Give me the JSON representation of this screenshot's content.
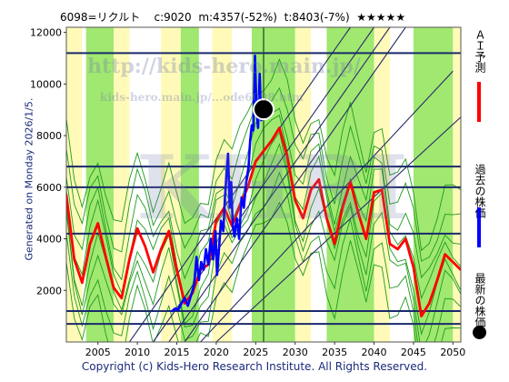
{
  "header": {
    "code_name": "6098=リクルト",
    "close": "c:9020",
    "min_info": "m:4357(-52%)",
    "target_info": "t:8403(-7%)",
    "stars": "★★★★★"
  },
  "generated_label": "Generated on Monday 2026/1/5.",
  "copyright": "Copyright (c) Kids-Hero Research Institute. All Rights Reserved.",
  "watermarks": {
    "url_main": "http://kids-hero.main.jp/",
    "url_sub": "kids-hero.main.jp/...ode6098.htm",
    "logo": "KHRI"
  },
  "legend": {
    "ai_forecast": "ＡＩ予測",
    "past_price": "過去の株価",
    "latest_price": "最新の株価"
  },
  "colors": {
    "forecast": "#ff0000",
    "past": "#0000ff",
    "latest": "#000000",
    "band_green": "#80e040",
    "band_yellow": "#fff8a0",
    "grid": "#1a2a6a",
    "trend_lines": "#2a2a6a",
    "envelope": "#1f9a1f"
  },
  "chart_data": {
    "type": "line",
    "xlim": [
      2001,
      2051
    ],
    "ylim": [
      0,
      12200
    ],
    "x_ticks": [
      2005,
      2010,
      2015,
      2020,
      2025,
      2030,
      2035,
      2040,
      2045,
      2050
    ],
    "y_ticks": [
      2000,
      4000,
      6000,
      8000,
      10000,
      12000
    ],
    "horizontal_levels": [
      700,
      1200,
      4200,
      6000,
      6800,
      11200
    ],
    "vertical_marker_x": 2026.0,
    "latest_point": {
      "x": 2026.0,
      "y": 9020
    },
    "series": [
      {
        "key": "ai_forecast",
        "x": [
          2001,
          2002,
          2003,
          2004,
          2005,
          2006,
          2007,
          2008,
          2009,
          2010,
          2011,
          2012,
          2013,
          2014,
          2015,
          2016,
          2017,
          2018,
          2019,
          2020,
          2021,
          2022,
          2023,
          2024,
          2025,
          2026,
          2027,
          2028,
          2029,
          2030,
          2031,
          2032,
          2033,
          2034,
          2035,
          2036,
          2037,
          2038,
          2039,
          2040,
          2041,
          2042,
          2043,
          2044,
          2045,
          2046,
          2047,
          2048,
          2049,
          2050,
          2051
        ],
        "values": [
          5700,
          3200,
          2300,
          3800,
          4600,
          3300,
          2100,
          1700,
          3200,
          4400,
          3700,
          2700,
          3600,
          4300,
          2800,
          1500,
          1900,
          2800,
          3000,
          4700,
          5200,
          4500,
          5300,
          6000,
          7000,
          7400,
          7800,
          8300,
          7200,
          5500,
          4800,
          5900,
          6300,
          4800,
          3800,
          5200,
          6200,
          5000,
          4000,
          5800,
          5900,
          3800,
          3600,
          4000,
          2900,
          1000,
          1500,
          2400,
          3400,
          3100,
          2800
        ]
      },
      {
        "key": "past_price",
        "x": [
          2014.4,
          2014.8,
          2015.2,
          2015.6,
          2016.0,
          2016.4,
          2016.8,
          2017.2,
          2017.5,
          2017.8,
          2018.1,
          2018.4,
          2018.7,
          2019.0,
          2019.3,
          2019.6,
          2019.9,
          2020.1,
          2020.3,
          2020.6,
          2020.9,
          2021.1,
          2021.3,
          2021.5,
          2021.7,
          2021.9,
          2022.1,
          2022.3,
          2022.6,
          2022.9,
          2023.2,
          2023.5,
          2023.8,
          2024.1,
          2024.3,
          2024.5,
          2024.7,
          2024.9,
          2025.1,
          2025.3,
          2025.5,
          2025.7,
          2025.9,
          2026.0
        ],
        "values": [
          1200,
          1300,
          1250,
          1500,
          1700,
          1400,
          1800,
          2200,
          3300,
          2400,
          3100,
          2800,
          3600,
          3000,
          4000,
          3200,
          4300,
          2600,
          3400,
          4700,
          4300,
          5600,
          6500,
          7300,
          5200,
          6200,
          4500,
          4100,
          4800,
          4000,
          5600,
          5200,
          6200,
          6800,
          7800,
          8400,
          8200,
          11100,
          9000,
          8300,
          10400,
          8600,
          8700,
          9020
        ]
      }
    ]
  }
}
